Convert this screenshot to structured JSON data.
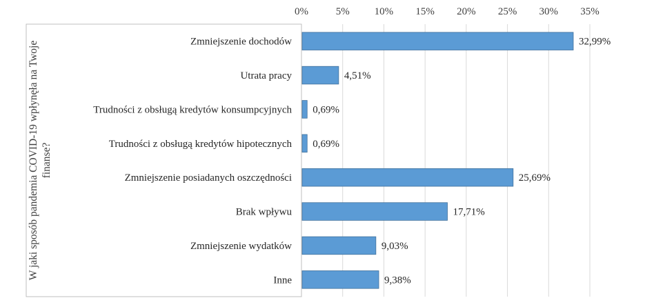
{
  "chart_data": {
    "type": "bar",
    "orientation": "horizontal",
    "ylabel": "W jaki sposób pandemia COVID-19 wpłynęła na Twoje finanse?",
    "xlim": [
      0,
      35
    ],
    "x_ticks": [
      "0%",
      "5%",
      "10%",
      "15%",
      "20%",
      "25%",
      "30%",
      "35%"
    ],
    "x_axis_position": "top",
    "grid": true,
    "categories": [
      "Zmniejszenie dochodów",
      "Utrata pracy",
      "Trudności z obsługą kredytów konsumpcyjnych",
      "Trudności z obsługą kredytów hipotecznych",
      "Zmniejszenie posiadanych oszczędności",
      "Brak wpływu",
      "Zmniejszenie wydatków",
      "Inne"
    ],
    "values": [
      32.99,
      4.51,
      0.69,
      0.69,
      25.69,
      17.71,
      9.03,
      9.38
    ],
    "data_labels": [
      "32,99%",
      "4,51%",
      "0,69%",
      "0,69%",
      "25,69%",
      "17,71%",
      "9,03%",
      "9,38%"
    ],
    "colors": {
      "bar": "#5b9bd5",
      "bar_edge": "#41719c",
      "grid": "#d9d9d9",
      "frame": "#bfbfbf"
    }
  }
}
